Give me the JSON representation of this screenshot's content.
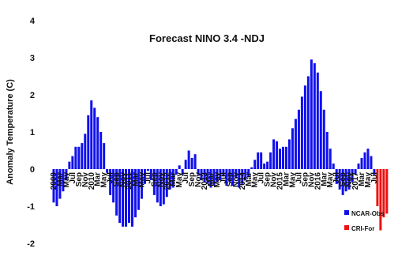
{
  "chart_data": {
    "type": "bar",
    "title": "Forecast NINO 3.4 -NDJ",
    "ylabel": "Anomaly Temperature (C)",
    "xlabel": "",
    "ylim": [
      -2,
      4
    ],
    "yticks": [
      "-2",
      "-1",
      "0",
      "1",
      "2",
      "3",
      "4"
    ],
    "grid": false,
    "legend_position": "bottom-right",
    "colors": {
      "obs": "#1010ee",
      "forecast": "#ee1111"
    },
    "x_tick_labels": [
      {
        "index": 0,
        "label": "2009"
      },
      {
        "index": 2,
        "label": "Mar"
      },
      {
        "index": 4,
        "label": "May"
      },
      {
        "index": 6,
        "label": "Jul"
      },
      {
        "index": 8,
        "label": "Sep"
      },
      {
        "index": 10,
        "label": "Nov"
      },
      {
        "index": 12,
        "label": "2010"
      },
      {
        "index": 14,
        "label": "Mar"
      },
      {
        "index": 16,
        "label": "May"
      },
      {
        "index": 18,
        "label": "Jul"
      },
      {
        "index": 20,
        "label": "Sep"
      },
      {
        "index": 22,
        "label": "Nov"
      },
      {
        "index": 24,
        "label": "2011"
      },
      {
        "index": 26,
        "label": "Mar"
      },
      {
        "index": 28,
        "label": "May"
      },
      {
        "index": 30,
        "label": "Jul"
      },
      {
        "index": 32,
        "label": "Sep"
      },
      {
        "index": 34,
        "label": "Nov"
      },
      {
        "index": 36,
        "label": "2012"
      },
      {
        "index": 38,
        "label": "Mar"
      },
      {
        "index": 40,
        "label": "May"
      },
      {
        "index": 42,
        "label": "Jul"
      },
      {
        "index": 44,
        "label": "Sep"
      },
      {
        "index": 46,
        "label": "Nov"
      },
      {
        "index": 48,
        "label": "2013"
      },
      {
        "index": 50,
        "label": "Mar"
      },
      {
        "index": 52,
        "label": "May"
      },
      {
        "index": 54,
        "label": "Jul"
      },
      {
        "index": 56,
        "label": "Sep"
      },
      {
        "index": 58,
        "label": "Nov"
      },
      {
        "index": 60,
        "label": "2014"
      },
      {
        "index": 62,
        "label": "Mar"
      },
      {
        "index": 64,
        "label": "May"
      },
      {
        "index": 66,
        "label": "Jul"
      },
      {
        "index": 68,
        "label": "Sep"
      },
      {
        "index": 70,
        "label": "Nov"
      },
      {
        "index": 72,
        "label": "2015"
      },
      {
        "index": 74,
        "label": "Mar"
      },
      {
        "index": 76,
        "label": "May"
      },
      {
        "index": 78,
        "label": "Jul"
      },
      {
        "index": 80,
        "label": "Sep"
      },
      {
        "index": 82,
        "label": "Nov"
      },
      {
        "index": 84,
        "label": "2016"
      },
      {
        "index": 86,
        "label": "Mar"
      },
      {
        "index": 88,
        "label": "May"
      },
      {
        "index": 90,
        "label": "Jul"
      },
      {
        "index": 92,
        "label": "Sep"
      },
      {
        "index": 94,
        "label": "Nov"
      },
      {
        "index": 96,
        "label": "2017"
      },
      {
        "index": 98,
        "label": "Mar"
      },
      {
        "index": 100,
        "label": "May"
      },
      {
        "index": 102,
        "label": "Jul"
      }
    ],
    "series": [
      {
        "name": "NCAR-Obs",
        "start_index": 0,
        "values": [
          -0.9,
          -1.0,
          -0.8,
          -0.6,
          -0.3,
          0.2,
          0.35,
          0.6,
          0.6,
          0.7,
          0.95,
          1.45,
          1.85,
          1.65,
          1.4,
          1.0,
          0.7,
          -0.1,
          -0.7,
          -0.9,
          -1.25,
          -1.45,
          -1.55,
          -1.55,
          -1.45,
          -1.55,
          -1.3,
          -1.1,
          -0.8,
          -0.4,
          -0.05,
          -0.3,
          -0.7,
          -0.9,
          -1.0,
          -0.95,
          -0.75,
          -0.55,
          -0.5,
          -0.15,
          0.1,
          -0.15,
          0.25,
          0.5,
          0.3,
          0.4,
          -0.15,
          -0.3,
          -0.35,
          -0.4,
          -0.5,
          -0.45,
          -0.35,
          -0.3,
          -0.2,
          -0.45,
          -0.35,
          -0.45,
          -0.25,
          -0.5,
          -0.4,
          -0.3,
          -0.2,
          0.05,
          0.25,
          0.45,
          0.45,
          0.15,
          0.2,
          0.45,
          0.8,
          0.75,
          0.55,
          0.6,
          0.6,
          0.8,
          1.1,
          1.35,
          1.6,
          1.95,
          2.25,
          2.5,
          2.95,
          2.85,
          2.6,
          2.1,
          1.6,
          1.0,
          0.55,
          0.15,
          -0.4,
          -0.55,
          -0.7,
          -0.6,
          -0.55,
          -0.35,
          -0.15,
          0.15,
          0.3,
          0.45,
          0.55,
          0.35,
          -0.15
        ]
      },
      {
        "name": "CRI-For",
        "start_index": 103,
        "values": [
          -1.0,
          -1.65,
          -1.3,
          -1.2
        ]
      }
    ]
  }
}
